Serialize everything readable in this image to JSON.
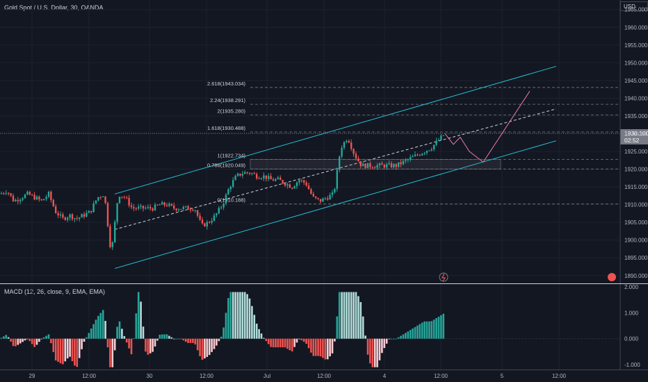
{
  "header": {
    "title": "Gold Spot / U.S. Dollar, 30, OANDA"
  },
  "axis": {
    "currency": "USD",
    "price_ticks": [
      "1965.000",
      "1960.000",
      "1955.000",
      "1950.000",
      "1945.000",
      "1940.000",
      "1935.000",
      "1930.000",
      "1925.000",
      "1920.000",
      "1915.000",
      "1910.000",
      "1905.000",
      "1900.000",
      "1895.000",
      "1890.000"
    ],
    "macd_ticks": [
      "2.000",
      "1.000",
      "0.000",
      "-1.000"
    ],
    "time_labels": [
      "29",
      "12:00",
      "30",
      "12:00",
      "Jul",
      "12:00",
      "4",
      "12:00",
      "5",
      "12:00"
    ]
  },
  "current_price": {
    "value": "1930.100",
    "countdown": "02:52"
  },
  "fibonacci": {
    "levels": [
      {
        "label": "2.618(1943.034)",
        "price": 1943.034
      },
      {
        "label": "2.24(1938.291)",
        "price": 1938.291
      },
      {
        "label": "2(1935.280)",
        "price": 1935.28
      },
      {
        "label": "1.618(1930.488)",
        "price": 1930.488
      },
      {
        "label": "1(1922.734)",
        "price": 1922.734
      },
      {
        "label": "0.786(1920.049)",
        "price": 1920.049
      },
      {
        "label": "0(1910.188)",
        "price": 1910.188
      }
    ]
  },
  "indicator": {
    "macd_label": "MACD (12, 26, close, 9, EMA, EMA)"
  },
  "colors": {
    "up": "#26a69a",
    "down": "#ef5350",
    "channel": "#22c3d6",
    "projection": "#e879a6",
    "background": "#131722",
    "grid": "#1e222d"
  },
  "chart_data": {
    "type": "candlestick",
    "title": "Gold Spot / U.S. Dollar, 30, OANDA",
    "close_path_x": [
      0,
      10,
      20,
      30,
      40,
      50,
      60,
      70,
      80,
      90,
      100,
      110,
      120,
      130,
      140,
      150,
      160,
      170,
      180,
      190,
      200,
      210,
      220,
      230,
      240,
      250,
      260,
      270,
      280,
      290,
      300,
      310,
      320,
      330,
      340,
      350,
      360,
      370,
      380,
      390,
      400,
      410,
      420,
      430,
      440,
      450,
      460,
      470,
      480,
      490,
      500,
      510,
      520,
      530,
      540,
      550,
      560,
      570,
      580,
      590,
      600,
      610,
      620,
      630,
      640
    ],
    "close_path_y": [
      1913,
      1914,
      1911,
      1912,
      1913,
      1912,
      1911,
      1913,
      1908,
      1906,
      1907,
      1906,
      1907,
      1908,
      1912,
      1913,
      1896,
      1913,
      1912,
      1909,
      1909,
      1909,
      1909,
      1910,
      1910,
      1909,
      1909,
      1909,
      1909,
      1904,
      1905,
      1907,
      1910,
      1915,
      1918,
      1919,
      1919,
      1918,
      1918,
      1917,
      1917,
      1916,
      1915,
      1917,
      1916,
      1912,
      1911,
      1912,
      1913,
      1926,
      1929,
      1924,
      1921,
      1921,
      1921,
      1921,
      1921,
      1921,
      1922,
      1923,
      1924,
      1925,
      1926,
      1928,
      1930
    ],
    "channel": {
      "upper": [
        [
          165,
          1913
        ],
        [
          800,
          1949
        ]
      ],
      "lower": [
        [
          165,
          1892
        ],
        [
          800,
          1928
        ]
      ],
      "mid": [
        [
          165,
          1903
        ],
        [
          800,
          1937
        ]
      ]
    },
    "projection": [
      [
        640,
        1930
      ],
      [
        652,
        1927
      ],
      [
        662,
        1929
      ],
      [
        675,
        1925
      ],
      [
        695,
        1922
      ],
      [
        762,
        1942
      ]
    ],
    "macd_hist_range": [
      -1.2,
      2.0
    ]
  }
}
